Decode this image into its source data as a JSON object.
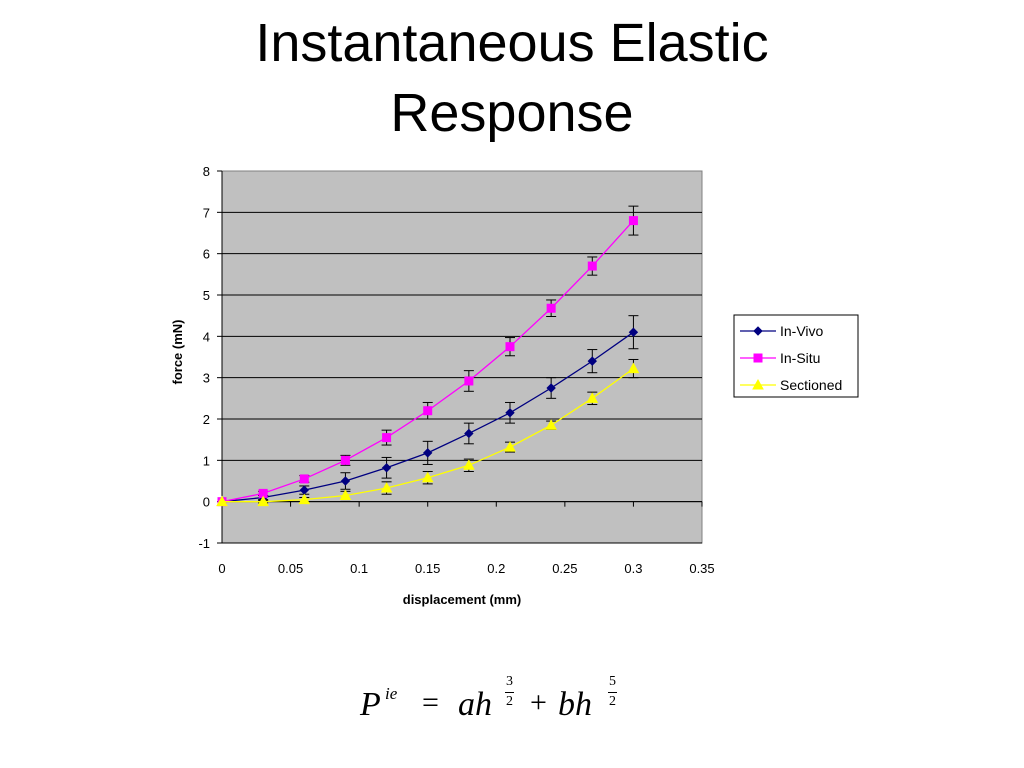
{
  "title_lines": [
    "Instantaneous Elastic",
    "Response"
  ],
  "chart_data": {
    "type": "line",
    "title": "Instantaneous Elastic Response",
    "xlabel": "displacement (mm)",
    "ylabel": "force (mN)",
    "xlim": [
      0,
      0.35
    ],
    "ylim": [
      -1,
      8
    ],
    "x_ticks": [
      "0",
      "0.05",
      "0.1",
      "0.15",
      "0.2",
      "0.25",
      "0.3",
      "0.35"
    ],
    "y_ticks": [
      "-1",
      "0",
      "1",
      "2",
      "3",
      "4",
      "5",
      "6",
      "7",
      "8"
    ],
    "grid": "horizontal",
    "legend_position": "right",
    "x": [
      0,
      0.03,
      0.06,
      0.09,
      0.12,
      0.15,
      0.18,
      0.21,
      0.24,
      0.27,
      0.3
    ],
    "series": [
      {
        "name": "In-Vivo",
        "marker": "diamond",
        "color": "#000080",
        "values": [
          0,
          0.1,
          0.28,
          0.5,
          0.82,
          1.18,
          1.65,
          2.15,
          2.75,
          3.4,
          4.1
        ],
        "error": [
          0,
          0.05,
          0.1,
          0.2,
          0.25,
          0.28,
          0.25,
          0.25,
          0.25,
          0.28,
          0.4
        ]
      },
      {
        "name": "In-Situ",
        "marker": "square",
        "color": "#FF00FF",
        "values": [
          0,
          0.2,
          0.55,
          1.0,
          1.55,
          2.2,
          2.92,
          3.75,
          4.68,
          5.7,
          6.8
        ],
        "error": [
          0,
          0.05,
          0.08,
          0.12,
          0.18,
          0.2,
          0.25,
          0.22,
          0.2,
          0.22,
          0.35
        ]
      },
      {
        "name": "Sectioned",
        "marker": "triangle",
        "color": "#FFFF00",
        "values": [
          0,
          0.0,
          0.05,
          0.15,
          0.33,
          0.58,
          0.88,
          1.32,
          1.85,
          2.5,
          3.22
        ],
        "error": [
          0,
          0.03,
          0.05,
          0.1,
          0.15,
          0.15,
          0.15,
          0.12,
          0.1,
          0.15,
          0.22
        ]
      }
    ]
  },
  "formula": {
    "P": "P",
    "P_sup": "ie",
    "equals": "=",
    "a_h": "ah",
    "exp1_num": "3",
    "exp1_den": "2",
    "plus": "+",
    "b_h": "bh",
    "exp2_num": "5",
    "exp2_den": "2"
  }
}
